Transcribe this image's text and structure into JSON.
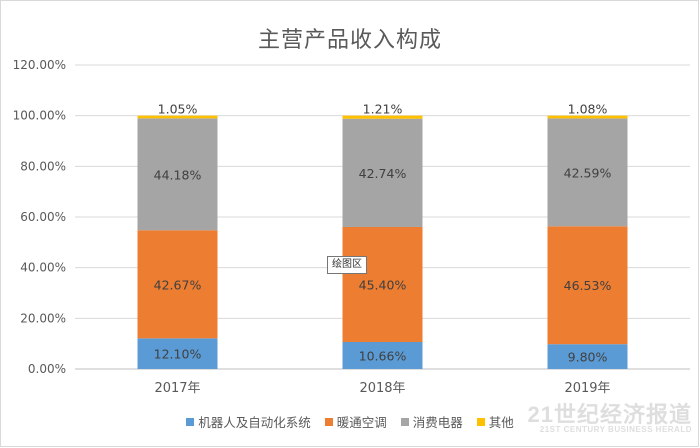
{
  "chart_data": {
    "type": "bar",
    "stacked": true,
    "title": "主营产品收入构成",
    "categories": [
      "2017年",
      "2018年",
      "2019年"
    ],
    "series": [
      {
        "name": "机器人及自动化系统",
        "color": "#5b9bd5",
        "values": [
          12.1,
          10.66,
          9.8
        ],
        "labels": [
          "12.10%",
          "10.66%",
          "9.80%"
        ]
      },
      {
        "name": "暖通空调",
        "color": "#ed7d31",
        "values": [
          42.67,
          45.4,
          46.53
        ],
        "labels": [
          "42.67%",
          "45.40%",
          "46.53%"
        ]
      },
      {
        "name": "消费电器",
        "color": "#a5a5a5",
        "values": [
          44.18,
          42.74,
          42.59
        ],
        "labels": [
          "44.18%",
          "42.74%",
          "42.59%"
        ]
      },
      {
        "name": "其他",
        "color": "#ffc000",
        "values": [
          1.05,
          1.21,
          1.08
        ],
        "labels": [
          "1.05%",
          "1.21%",
          "1.08%"
        ]
      }
    ],
    "ylim": [
      0,
      120
    ],
    "yticks": [
      "0.00%",
      "20.00%",
      "40.00%",
      "60.00%",
      "80.00%",
      "100.00%",
      "120.00%"
    ],
    "grid": true,
    "legend_position": "bottom"
  },
  "tooltip": "绘图区",
  "watermark": {
    "main": "21世纪经济报道",
    "sub": "21ST CENTURY BUSINESS HERALD"
  }
}
